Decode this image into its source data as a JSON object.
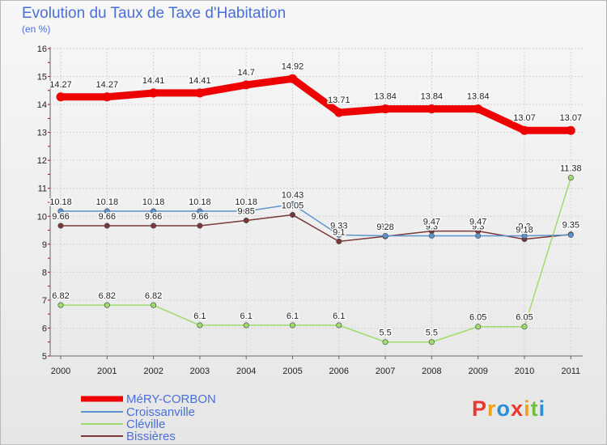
{
  "title": "Evolution du Taux de Taxe d'Habitation",
  "subtitle": "(en %)",
  "logo": {
    "letters": [
      "P",
      "r",
      "o",
      "x",
      "i",
      "t",
      "i"
    ],
    "colors": [
      "#e8392f",
      "#f0a11b",
      "#2b8fd6",
      "#e8392f",
      "#f0a11b",
      "#6fbf3b",
      "#2b8fd6"
    ]
  },
  "chart_data": {
    "type": "line",
    "x": [
      "2000",
      "2001",
      "2002",
      "2003",
      "2004",
      "2005",
      "2006",
      "2007",
      "2008",
      "2009",
      "2010",
      "2011"
    ],
    "ylim": [
      5,
      16
    ],
    "yticks": [
      5,
      6,
      7,
      8,
      9,
      10,
      11,
      12,
      13,
      14,
      15,
      16
    ],
    "grid": true,
    "legend": "bottom-left",
    "series": [
      {
        "name": "MéRY-CORBON",
        "color": "#ee0000",
        "values": [
          14.27,
          14.27,
          14.41,
          14.41,
          14.7,
          14.92,
          13.71,
          13.84,
          13.84,
          13.84,
          13.07,
          13.07
        ],
        "labels": [
          "14.27",
          "14.27",
          "14.41",
          "14.41",
          "14.7",
          "14.92",
          "13.71",
          "13.84",
          "13.84",
          "13.84",
          "13.07",
          "13.07"
        ]
      },
      {
        "name": "Croissanville",
        "color": "#5b93cc",
        "values": [
          10.18,
          10.18,
          10.18,
          10.18,
          10.18,
          10.43,
          9.33,
          9.3,
          9.3,
          9.3,
          9.3,
          9.33
        ],
        "labels": [
          "10.18",
          "10.18",
          "10.18",
          "10.18",
          "10.18",
          "10.43",
          "9.33",
          "9.3",
          "9.3",
          "9.3",
          "9.3",
          "9.33"
        ]
      },
      {
        "name": "Cléville",
        "color": "#9edc6c",
        "values": [
          6.82,
          6.82,
          6.82,
          6.1,
          6.1,
          6.1,
          6.1,
          5.5,
          5.5,
          6.05,
          6.05,
          11.38
        ],
        "labels": [
          "6.82",
          "6.82",
          "6.82",
          "6.1",
          "6.1",
          "6.1",
          "6.1",
          "5.5",
          "5.5",
          "6.05",
          "6.05",
          "11.38"
        ]
      },
      {
        "name": "Bissières",
        "color": "#7a3838",
        "values": [
          9.66,
          9.66,
          9.66,
          9.66,
          9.85,
          10.05,
          9.1,
          9.28,
          9.47,
          9.47,
          9.18,
          9.35
        ],
        "labels": [
          "9.66",
          "9.66",
          "9.66",
          "9.66",
          "9.85",
          "10.05",
          "9.1",
          "9.28",
          "9.47",
          "9.47",
          "9.18",
          "9.35"
        ]
      }
    ]
  }
}
